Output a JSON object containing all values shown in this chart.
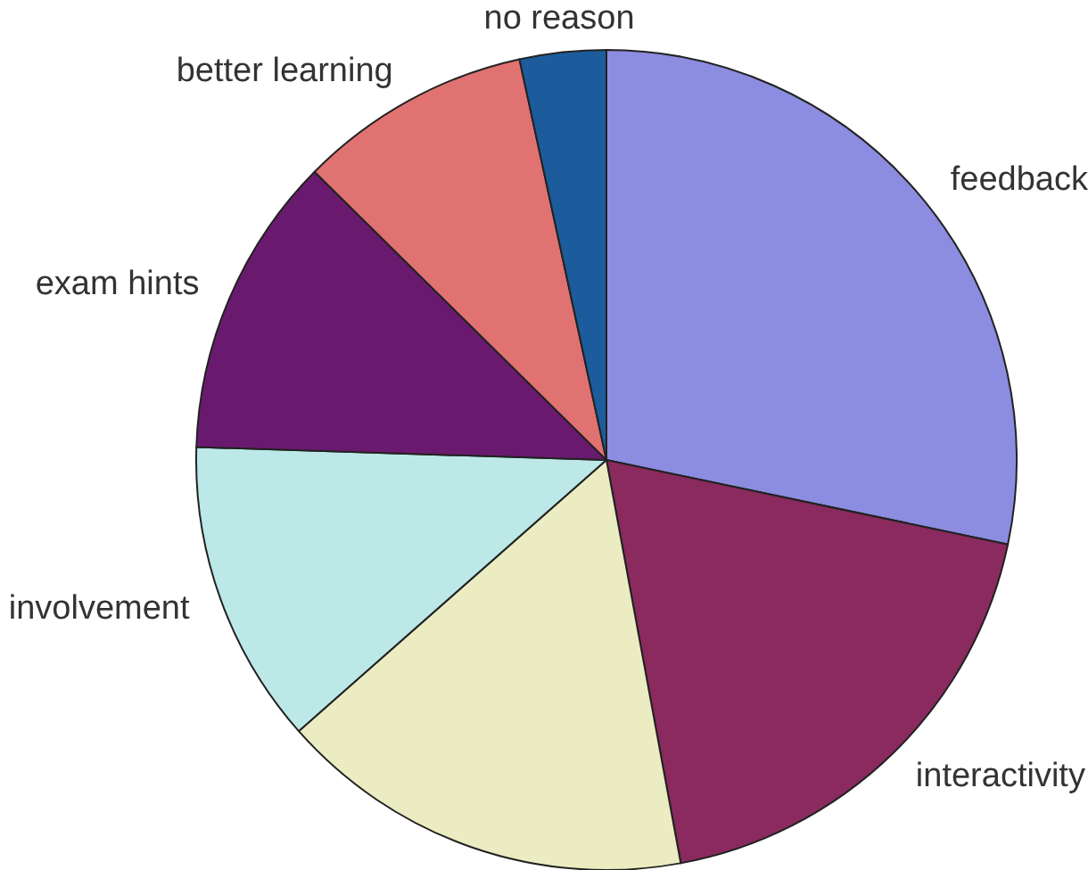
{
  "chart_data": {
    "type": "pie",
    "categories": [
      "feedback",
      "interactivity",
      null,
      "involvement",
      "exam hints",
      "better learning",
      "no reason"
    ],
    "values": [
      28.3,
      18.8,
      16.4,
      12.0,
      11.9,
      9.2,
      3.4
    ],
    "colors": [
      "#8c8ce0",
      "#8a2a5e",
      "#ececc2",
      "#bce8e8",
      "#6a1a6e",
      "#e07272",
      "#1c5c9c"
    ]
  }
}
